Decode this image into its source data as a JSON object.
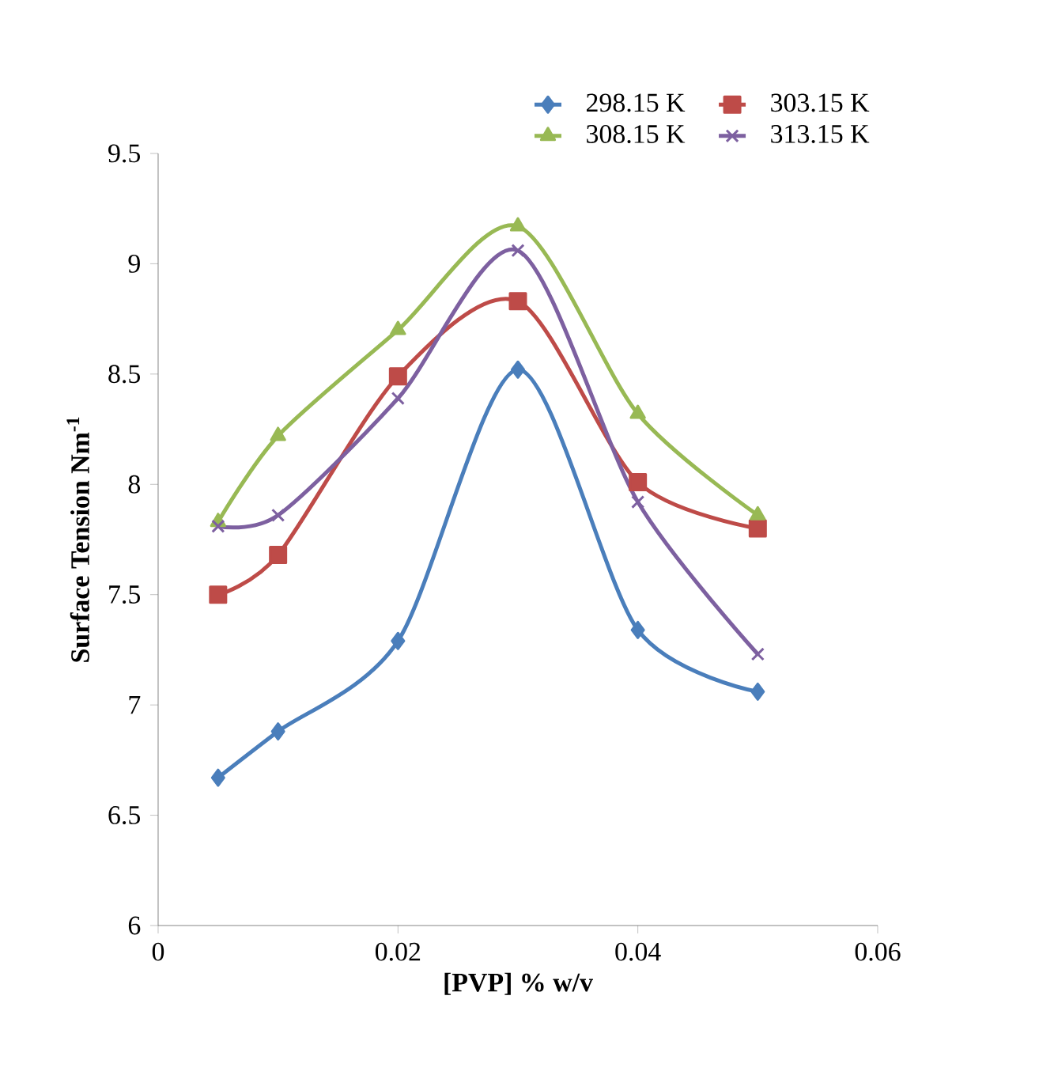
{
  "chart_data": {
    "type": "line",
    "xlabel": "[PVP] % w/v",
    "ylabel": "Surface Tension Nm$^{-1}$",
    "x": [
      0.005,
      0.01,
      0.02,
      0.03,
      0.04,
      0.05
    ],
    "xlim": [
      0,
      0.06
    ],
    "xticks": [
      0,
      0.02,
      0.04,
      0.06
    ],
    "ylim": [
      6,
      9.5
    ],
    "yticks": [
      6,
      6.5,
      7,
      7.5,
      8,
      8.5,
      9,
      9.5
    ],
    "grid": false,
    "legend": "top",
    "line_style": "solid",
    "series": [
      {
        "name": "298.15 K",
        "color": "#4a7ebb",
        "marker": "diamond",
        "values": [
          6.67,
          6.88,
          7.29,
          8.52,
          7.34,
          7.06
        ]
      },
      {
        "name": "303.15 K",
        "color": "#be4b48",
        "marker": "square",
        "values": [
          7.5,
          7.68,
          8.49,
          8.83,
          8.01,
          7.8
        ]
      },
      {
        "name": "308.15 K",
        "color": "#98b954",
        "marker": "triangle",
        "values": [
          7.83,
          8.22,
          8.7,
          9.17,
          8.32,
          7.86
        ]
      },
      {
        "name": "313.15 K",
        "color": "#7d60a0",
        "marker": "cross",
        "values": [
          7.81,
          7.86,
          8.39,
          9.06,
          7.92,
          7.23
        ]
      }
    ]
  }
}
